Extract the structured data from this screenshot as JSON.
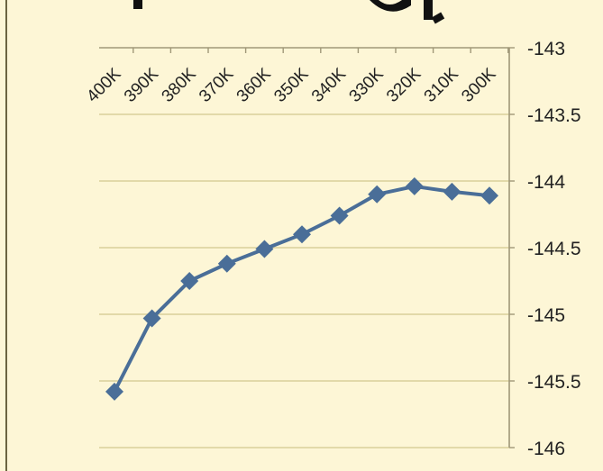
{
  "chart_data": {
    "type": "line",
    "title": "",
    "xlabel": "",
    "ylabel": "",
    "categories": [
      "400K",
      "390K",
      "380K",
      "370K",
      "360K",
      "350K",
      "340K",
      "330K",
      "320K",
      "310K",
      "300K"
    ],
    "series": [
      {
        "values": [
          -145.58,
          -145.03,
          -144.75,
          -144.62,
          -144.51,
          -144.4,
          -144.26,
          -144.1,
          -144.04,
          -144.08,
          -144.11
        ],
        "color": "#4a6e98",
        "marker": "diamond"
      }
    ],
    "ylim": [
      -146,
      -143
    ],
    "yticks": [
      "-143",
      "-143.5",
      "-144",
      "-144.5",
      "-145",
      "-145.5",
      "-146"
    ],
    "x_axis_position": "top",
    "y_axis_position": "right",
    "grid": true,
    "legend": "none"
  },
  "colors": {
    "background": "#fdf6d6",
    "gridline": "#d9cf9a",
    "axis": "#a09878",
    "series": "#4a6e98",
    "text": "#222222"
  }
}
